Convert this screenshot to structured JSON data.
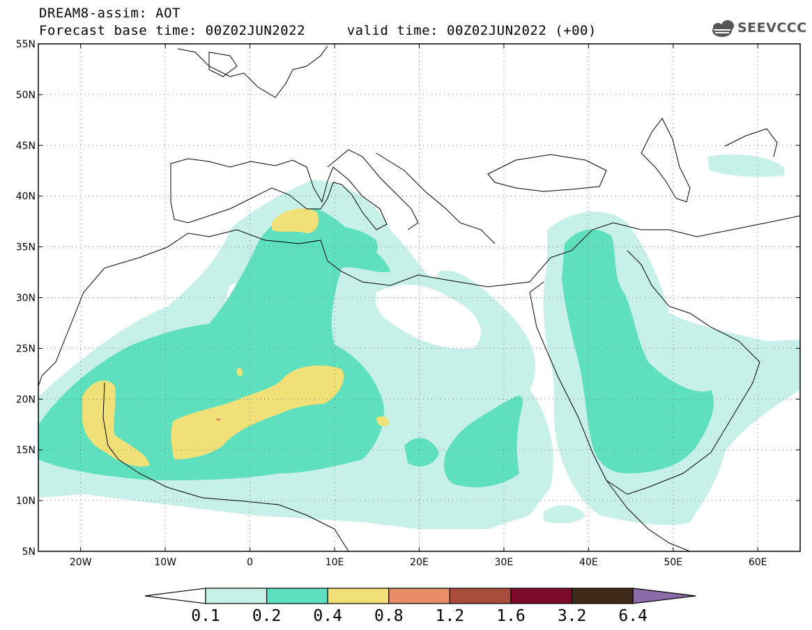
{
  "header": {
    "title": "DREAM8-assim: AOT",
    "subtitle": "Forecast base time: 00Z02JUN2022     valid time: 00Z02JUN2022 (+00)"
  },
  "logo": {
    "text": "SEEVCCC",
    "icon": "cloud-icon"
  },
  "map": {
    "lon_range": [
      -25,
      65
    ],
    "lat_range": [
      5,
      55
    ],
    "lat_ticks": [
      "55N",
      "50N",
      "45N",
      "40N",
      "35N",
      "30N",
      "25N",
      "20N",
      "15N",
      "10N",
      "5N"
    ],
    "lon_ticks": [
      "20W",
      "10W",
      "0",
      "10E",
      "20E",
      "30E",
      "40E",
      "50E",
      "60E"
    ],
    "grid": "dotted"
  },
  "colorbar": {
    "labels": [
      "0.1",
      "0.2",
      "0.4",
      "0.8",
      "1.2",
      "1.6",
      "3.2",
      "6.4"
    ],
    "colors": [
      "#ffffff",
      "#c6f0e8",
      "#5edfbd",
      "#f1e078",
      "#e88d66",
      "#a94c3c",
      "#7b0a2a",
      "#3f2a1a",
      "#8b6ba8"
    ]
  },
  "colors": {
    "aot_01_02": "#c6f0e8",
    "aot_02_04": "#5edfbd",
    "aot_04_08": "#f1e078",
    "aot_08_12": "#e88d66"
  }
}
